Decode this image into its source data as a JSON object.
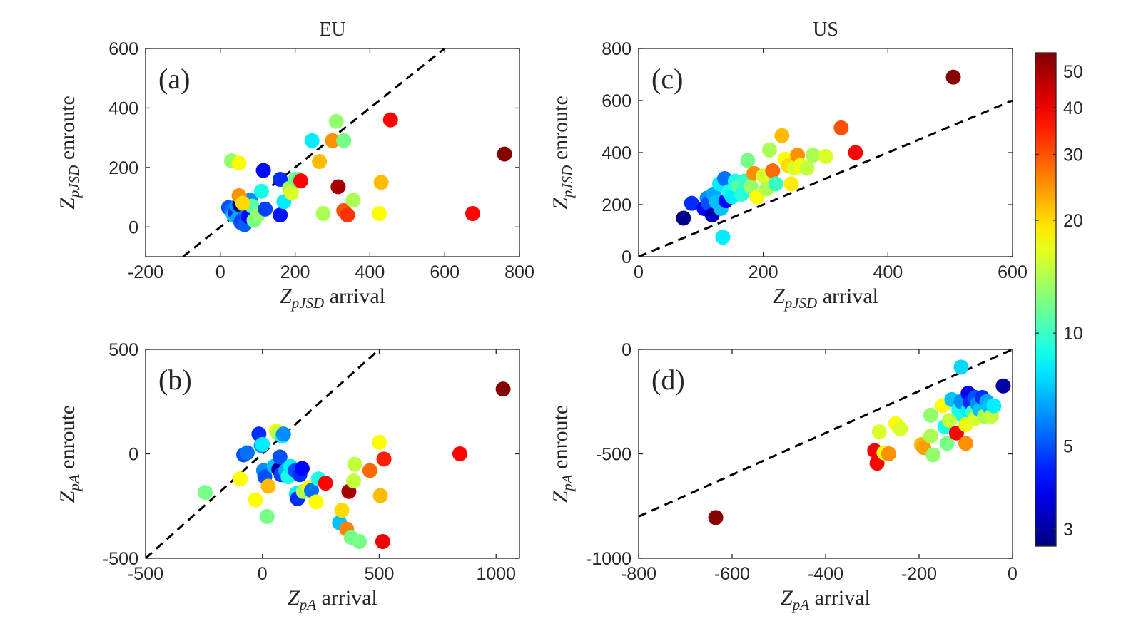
{
  "column_titles": [
    "EU",
    "US"
  ],
  "colorbar": {
    "scale": "log",
    "range": [
      2.7,
      56
    ],
    "ticks": [
      3,
      5,
      10,
      20,
      30,
      40,
      50
    ],
    "colormap": "jet"
  },
  "chart_data": [
    {
      "id": "a",
      "type": "scatter",
      "panel_label": "(a)",
      "xlabel": {
        "sym": "Z",
        "sub": "pJSD",
        "text": "arrival"
      },
      "ylabel": {
        "sym": "Z",
        "sub": "pJSD",
        "text": "enroute"
      },
      "xlim": [
        -200,
        800
      ],
      "ylim": [
        -100,
        600
      ],
      "xticks": [
        -200,
        0,
        200,
        400,
        600,
        800
      ],
      "yticks": [
        0,
        200,
        400,
        600
      ],
      "reference_line": "y = x",
      "points": [
        [
          22,
          65,
          5
        ],
        [
          30,
          55,
          5.5
        ],
        [
          35,
          40,
          7
        ],
        [
          40,
          48,
          4.5
        ],
        [
          45,
          70,
          6
        ],
        [
          48,
          30,
          6.5
        ],
        [
          52,
          74,
          2.8
        ],
        [
          55,
          15,
          5
        ],
        [
          60,
          25,
          4.8
        ],
        [
          65,
          8,
          5.2
        ],
        [
          70,
          45,
          5.5
        ],
        [
          75,
          35,
          4
        ],
        [
          80,
          90,
          6
        ],
        [
          85,
          70,
          11
        ],
        [
          90,
          22,
          12
        ],
        [
          100,
          40,
          13
        ],
        [
          110,
          120,
          9
        ],
        [
          115,
          190,
          4
        ],
        [
          120,
          60,
          4.8
        ],
        [
          160,
          160,
          4.5
        ],
        [
          160,
          40,
          4.2
        ],
        [
          170,
          85,
          8
        ],
        [
          185,
          130,
          14
        ],
        [
          190,
          115,
          16
        ],
        [
          200,
          160,
          12
        ],
        [
          210,
          160,
          11
        ],
        [
          215,
          155,
          38
        ],
        [
          30,
          222,
          13
        ],
        [
          50,
          215,
          18
        ],
        [
          50,
          105,
          25
        ],
        [
          60,
          80,
          20
        ],
        [
          245,
          290,
          8
        ],
        [
          265,
          220,
          22
        ],
        [
          275,
          45,
          14
        ],
        [
          300,
          290,
          25
        ],
        [
          310,
          355,
          13
        ],
        [
          315,
          135,
          50
        ],
        [
          330,
          290,
          12
        ],
        [
          330,
          55,
          30
        ],
        [
          340,
          40,
          33
        ],
        [
          355,
          90,
          14
        ],
        [
          425,
          45,
          18
        ],
        [
          430,
          150,
          22
        ],
        [
          455,
          360,
          38
        ],
        [
          675,
          45,
          38
        ],
        [
          760,
          245,
          55
        ]
      ]
    },
    {
      "id": "b",
      "type": "scatter",
      "panel_label": "(b)",
      "xlabel": {
        "sym": "Z",
        "sub": "pA",
        "text": "arrival"
      },
      "ylabel": {
        "sym": "Z",
        "sub": "pA",
        "text": "enroute"
      },
      "xlim": [
        -500,
        1100
      ],
      "ylim": [
        -500,
        500
      ],
      "xticks": [
        -500,
        0,
        500,
        1000
      ],
      "yticks": [
        -500,
        0,
        500
      ],
      "reference_line": "y = x",
      "points": [
        [
          -245,
          -185,
          12
        ],
        [
          -95,
          -120,
          18
        ],
        [
          -80,
          -5,
          5
        ],
        [
          -65,
          5,
          5.5
        ],
        [
          -15,
          95,
          4.5
        ],
        [
          -5,
          40,
          6
        ],
        [
          0,
          45,
          8
        ],
        [
          5,
          -80,
          6
        ],
        [
          10,
          -110,
          5
        ],
        [
          20,
          -300,
          12
        ],
        [
          25,
          -155,
          22
        ],
        [
          -30,
          -220,
          18
        ],
        [
          50,
          -60,
          7
        ],
        [
          60,
          110,
          18
        ],
        [
          65,
          100,
          15
        ],
        [
          70,
          -75,
          3
        ],
        [
          75,
          -15,
          5
        ],
        [
          80,
          -100,
          4.8
        ],
        [
          85,
          85,
          8
        ],
        [
          90,
          95,
          6
        ],
        [
          100,
          -80,
          6.5
        ],
        [
          110,
          -110,
          9
        ],
        [
          120,
          -60,
          8
        ],
        [
          140,
          -80,
          5
        ],
        [
          145,
          -190,
          8
        ],
        [
          150,
          -215,
          4.5
        ],
        [
          160,
          -100,
          4.5
        ],
        [
          170,
          -70,
          4
        ],
        [
          175,
          -180,
          14
        ],
        [
          200,
          -160,
          18
        ],
        [
          210,
          -175,
          5.5
        ],
        [
          230,
          -230,
          18
        ],
        [
          240,
          -120,
          9
        ],
        [
          270,
          -140,
          38
        ],
        [
          330,
          -330,
          7
        ],
        [
          340,
          -270,
          20
        ],
        [
          360,
          -360,
          26
        ],
        [
          370,
          -180,
          50
        ],
        [
          380,
          -400,
          12
        ],
        [
          390,
          -130,
          15
        ],
        [
          395,
          -50,
          15
        ],
        [
          415,
          -420,
          12
        ],
        [
          460,
          -80,
          28
        ],
        [
          500,
          55,
          18
        ],
        [
          505,
          -200,
          22
        ],
        [
          515,
          -420,
          40
        ],
        [
          520,
          -25,
          35
        ],
        [
          845,
          0,
          38
        ],
        [
          1030,
          310,
          55
        ]
      ]
    },
    {
      "id": "c",
      "type": "scatter",
      "panel_label": "(c)",
      "xlabel": {
        "sym": "Z",
        "sub": "pJSD",
        "text": "arrival"
      },
      "ylabel": {
        "sym": "Z",
        "sub": "pJSD",
        "text": "enroute"
      },
      "xlim": [
        0,
        600
      ],
      "ylim": [
        0,
        800
      ],
      "xticks": [
        0,
        200,
        400,
        600
      ],
      "yticks": [
        0,
        200,
        400,
        600,
        800
      ],
      "reference_line": "y = x",
      "points": [
        [
          72,
          148,
          2.8
        ],
        [
          85,
          205,
          4.5
        ],
        [
          105,
          185,
          4
        ],
        [
          110,
          225,
          6
        ],
        [
          112,
          205,
          5
        ],
        [
          118,
          160,
          3.2
        ],
        [
          120,
          240,
          6.5
        ],
        [
          125,
          210,
          7
        ],
        [
          130,
          280,
          8
        ],
        [
          132,
          185,
          7
        ],
        [
          135,
          75,
          8
        ],
        [
          138,
          300,
          5.5
        ],
        [
          140,
          215,
          4
        ],
        [
          145,
          250,
          9
        ],
        [
          150,
          230,
          8
        ],
        [
          155,
          290,
          9
        ],
        [
          160,
          270,
          11
        ],
        [
          165,
          240,
          9.5
        ],
        [
          170,
          290,
          10
        ],
        [
          175,
          370,
          12
        ],
        [
          180,
          270,
          13
        ],
        [
          185,
          320,
          25
        ],
        [
          190,
          230,
          18
        ],
        [
          200,
          310,
          16
        ],
        [
          205,
          260,
          14
        ],
        [
          210,
          410,
          14
        ],
        [
          215,
          330,
          28
        ],
        [
          220,
          280,
          10
        ],
        [
          230,
          465,
          22
        ],
        [
          235,
          375,
          18
        ],
        [
          240,
          350,
          20
        ],
        [
          245,
          280,
          19
        ],
        [
          250,
          340,
          16
        ],
        [
          255,
          390,
          25
        ],
        [
          260,
          350,
          17
        ],
        [
          270,
          340,
          15
        ],
        [
          280,
          390,
          14
        ],
        [
          300,
          385,
          16
        ],
        [
          325,
          495,
          30
        ],
        [
          348,
          400,
          38
        ],
        [
          505,
          690,
          55
        ]
      ]
    },
    {
      "id": "d",
      "type": "scatter",
      "panel_label": "(d)",
      "xlabel": {
        "sym": "Z",
        "sub": "pA",
        "text": "arrival"
      },
      "ylabel": {
        "sym": "Z",
        "sub": "pA",
        "text": "enroute"
      },
      "xlim": [
        -800,
        0
      ],
      "ylim": [
        -1000,
        0
      ],
      "xticks": [
        -800,
        -600,
        -400,
        -200,
        0
      ],
      "yticks": [
        -1000,
        -500,
        0
      ],
      "reference_line": "y = x",
      "points": [
        [
          -635,
          -805,
          55
        ],
        [
          -295,
          -485,
          40
        ],
        [
          -290,
          -545,
          38
        ],
        [
          -285,
          -395,
          16
        ],
        [
          -275,
          -495,
          17
        ],
        [
          -265,
          -500,
          25
        ],
        [
          -250,
          -355,
          18
        ],
        [
          -240,
          -380,
          16
        ],
        [
          -195,
          -455,
          22
        ],
        [
          -190,
          -470,
          24
        ],
        [
          -175,
          -315,
          13
        ],
        [
          -175,
          -415,
          14
        ],
        [
          -170,
          -505,
          13
        ],
        [
          -150,
          -270,
          18
        ],
        [
          -145,
          -370,
          9
        ],
        [
          -140,
          -450,
          12
        ],
        [
          -135,
          -340,
          15
        ],
        [
          -130,
          -240,
          7
        ],
        [
          -120,
          -400,
          38
        ],
        [
          -115,
          -290,
          9
        ],
        [
          -110,
          -85,
          7.5
        ],
        [
          -110,
          -250,
          6
        ],
        [
          -105,
          -320,
          9
        ],
        [
          -100,
          -360,
          17
        ],
        [
          -100,
          -450,
          25
        ],
        [
          -95,
          -210,
          3.8
        ],
        [
          -95,
          -290,
          8
        ],
        [
          -90,
          -255,
          4.5
        ],
        [
          -85,
          -300,
          10
        ],
        [
          -80,
          -230,
          5
        ],
        [
          -80,
          -330,
          16
        ],
        [
          -75,
          -260,
          6
        ],
        [
          -70,
          -290,
          7
        ],
        [
          -65,
          -230,
          4.5
        ],
        [
          -60,
          -320,
          14
        ],
        [
          -55,
          -250,
          6.5
        ],
        [
          -50,
          -275,
          7
        ],
        [
          -45,
          -320,
          15
        ],
        [
          -40,
          -270,
          8
        ],
        [
          -20,
          -175,
          3
        ]
      ]
    }
  ]
}
